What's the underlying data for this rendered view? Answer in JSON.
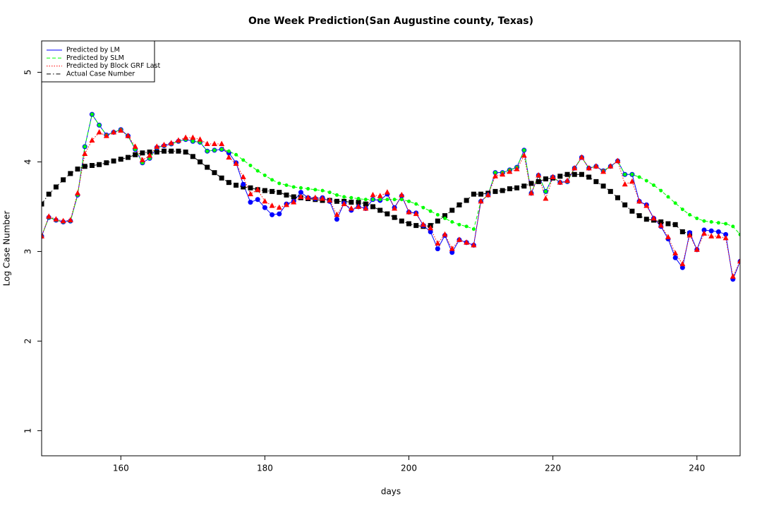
{
  "chart_data": {
    "type": "line",
    "title": "One Week Prediction(San Augustine county, Texas)",
    "x_label": "days",
    "y_label": "Log Case Number",
    "legend": "top-left",
    "x": [
      149,
      150,
      151,
      152,
      153,
      154,
      155,
      156,
      157,
      158,
      159,
      160,
      161,
      162,
      163,
      164,
      165,
      166,
      167,
      168,
      169,
      170,
      171,
      172,
      173,
      174,
      175,
      176,
      177,
      178,
      179,
      180,
      181,
      182,
      183,
      184,
      185,
      186,
      187,
      188,
      189,
      190,
      191,
      192,
      193,
      194,
      195,
      196,
      197,
      198,
      199,
      200,
      201,
      202,
      203,
      204,
      205,
      206,
      207,
      208,
      209,
      210,
      211,
      212,
      213,
      214,
      215,
      216,
      217,
      218,
      219,
      220,
      221,
      222,
      223,
      224,
      225,
      226,
      227,
      228,
      229,
      230,
      231,
      232,
      233,
      234,
      235,
      236,
      237,
      238,
      239,
      240,
      241,
      242,
      243,
      244,
      245,
      246
    ],
    "xlim": [
      149,
      246
    ],
    "xticks": [
      160,
      180,
      200,
      220,
      240
    ],
    "ylim": [
      0.72,
      5.35
    ],
    "yticks": [
      1,
      2,
      3,
      4,
      5
    ],
    "series": [
      {
        "name": "Predicted by LM",
        "color": "#0000ff",
        "line_style": "solid",
        "marker": "circle",
        "values": [
          3.17,
          3.38,
          3.35,
          3.33,
          3.34,
          3.63,
          4.17,
          4.53,
          4.41,
          4.3,
          4.33,
          4.36,
          4.29,
          4.14,
          3.99,
          4.04,
          4.16,
          4.18,
          4.2,
          4.23,
          4.25,
          4.23,
          4.22,
          4.12,
          4.13,
          4.14,
          4.1,
          3.99,
          3.75,
          3.55,
          3.58,
          3.49,
          3.41,
          3.42,
          3.53,
          3.56,
          3.66,
          3.6,
          3.59,
          3.6,
          3.56,
          3.36,
          3.54,
          3.46,
          3.5,
          3.48,
          3.58,
          3.57,
          3.64,
          3.49,
          3.62,
          3.44,
          3.43,
          3.29,
          3.22,
          3.03,
          3.18,
          2.99,
          3.13,
          3.1,
          3.07,
          3.56,
          3.63,
          3.88,
          3.88,
          3.91,
          3.94,
          4.13,
          3.65,
          3.85,
          3.67,
          3.83,
          3.77,
          3.78,
          3.93,
          4.05,
          3.93,
          3.95,
          3.9,
          3.95,
          4.01,
          3.86,
          3.86,
          3.56,
          3.52,
          3.37,
          3.28,
          3.14,
          2.93,
          2.82,
          3.21,
          3.02,
          3.24,
          3.23,
          3.22,
          3.19,
          2.69,
          2.89
        ]
      },
      {
        "name": "Predicted by SLM",
        "color": "#00ff00",
        "line_style": "dashed",
        "marker": "small-circle",
        "values": [
          3.17,
          3.38,
          3.35,
          3.33,
          3.34,
          3.63,
          4.17,
          4.53,
          4.41,
          4.3,
          4.33,
          4.36,
          4.29,
          4.14,
          3.99,
          4.04,
          4.16,
          4.18,
          4.2,
          4.23,
          4.25,
          4.23,
          4.22,
          4.12,
          4.13,
          4.14,
          4.12,
          4.08,
          4.02,
          3.96,
          3.9,
          3.85,
          3.8,
          3.76,
          3.74,
          3.72,
          3.71,
          3.7,
          3.69,
          3.68,
          3.66,
          3.63,
          3.61,
          3.6,
          3.59,
          3.58,
          3.58,
          3.58,
          3.58,
          3.58,
          3.58,
          3.56,
          3.53,
          3.49,
          3.45,
          3.41,
          3.37,
          3.33,
          3.3,
          3.28,
          3.25,
          3.56,
          3.63,
          3.88,
          3.88,
          3.91,
          3.94,
          4.13,
          3.65,
          3.85,
          3.67,
          3.83,
          3.77,
          3.78,
          3.93,
          4.05,
          3.93,
          3.95,
          3.9,
          3.95,
          4.01,
          3.86,
          3.86,
          3.83,
          3.79,
          3.74,
          3.68,
          3.61,
          3.54,
          3.47,
          3.41,
          3.37,
          3.34,
          3.33,
          3.32,
          3.31,
          3.28,
          3.19
        ]
      },
      {
        "name": "Predicted by Block GRF Last",
        "color": "#ff0000",
        "line_style": "dotted",
        "marker": "triangle",
        "values": [
          3.17,
          3.39,
          3.36,
          3.34,
          3.35,
          3.65,
          4.09,
          4.24,
          4.33,
          4.29,
          4.33,
          4.35,
          4.29,
          4.17,
          4.02,
          4.07,
          4.17,
          4.19,
          4.21,
          4.24,
          4.27,
          4.27,
          4.25,
          4.2,
          4.2,
          4.2,
          4.05,
          3.98,
          3.83,
          3.64,
          3.69,
          3.56,
          3.51,
          3.49,
          3.52,
          3.55,
          3.61,
          3.6,
          3.6,
          3.59,
          3.57,
          3.41,
          3.53,
          3.48,
          3.5,
          3.48,
          3.63,
          3.62,
          3.66,
          3.48,
          3.63,
          3.44,
          3.42,
          3.3,
          3.26,
          3.09,
          3.19,
          3.03,
          3.13,
          3.1,
          3.07,
          3.56,
          3.63,
          3.84,
          3.86,
          3.89,
          3.92,
          4.07,
          3.65,
          3.85,
          3.59,
          3.83,
          3.77,
          3.79,
          3.93,
          4.05,
          3.93,
          3.95,
          3.89,
          3.95,
          4.01,
          3.75,
          3.78,
          3.56,
          3.51,
          3.37,
          3.29,
          3.16,
          2.98,
          2.86,
          3.18,
          3.02,
          3.2,
          3.17,
          3.17,
          3.15,
          2.72,
          2.89
        ]
      },
      {
        "name": "Actual Case Number",
        "color": "#000000",
        "line_style": "dashdot",
        "marker": "square",
        "values": [
          3.53,
          3.64,
          3.72,
          3.8,
          3.87,
          3.92,
          3.95,
          3.96,
          3.97,
          3.99,
          4.01,
          4.03,
          4.05,
          4.08,
          4.1,
          4.11,
          4.11,
          4.12,
          4.12,
          4.12,
          4.11,
          4.06,
          4.0,
          3.94,
          3.88,
          3.82,
          3.77,
          3.74,
          3.72,
          3.71,
          3.69,
          3.68,
          3.67,
          3.66,
          3.63,
          3.61,
          3.6,
          3.59,
          3.58,
          3.57,
          3.57,
          3.56,
          3.56,
          3.55,
          3.55,
          3.53,
          3.5,
          3.46,
          3.42,
          3.38,
          3.34,
          3.31,
          3.29,
          3.28,
          3.29,
          3.34,
          3.4,
          3.46,
          3.52,
          3.57,
          3.64,
          3.64,
          3.65,
          3.67,
          3.68,
          3.7,
          3.71,
          3.73,
          3.76,
          3.78,
          3.81,
          3.82,
          3.84,
          3.86,
          3.86,
          3.86,
          3.83,
          3.78,
          3.73,
          3.67,
          3.6,
          3.52,
          3.45,
          3.4,
          3.36,
          3.35,
          3.33,
          3.31,
          3.3,
          3.22,
          3.2,
          null,
          null,
          null,
          null,
          null,
          null,
          null
        ]
      }
    ]
  }
}
